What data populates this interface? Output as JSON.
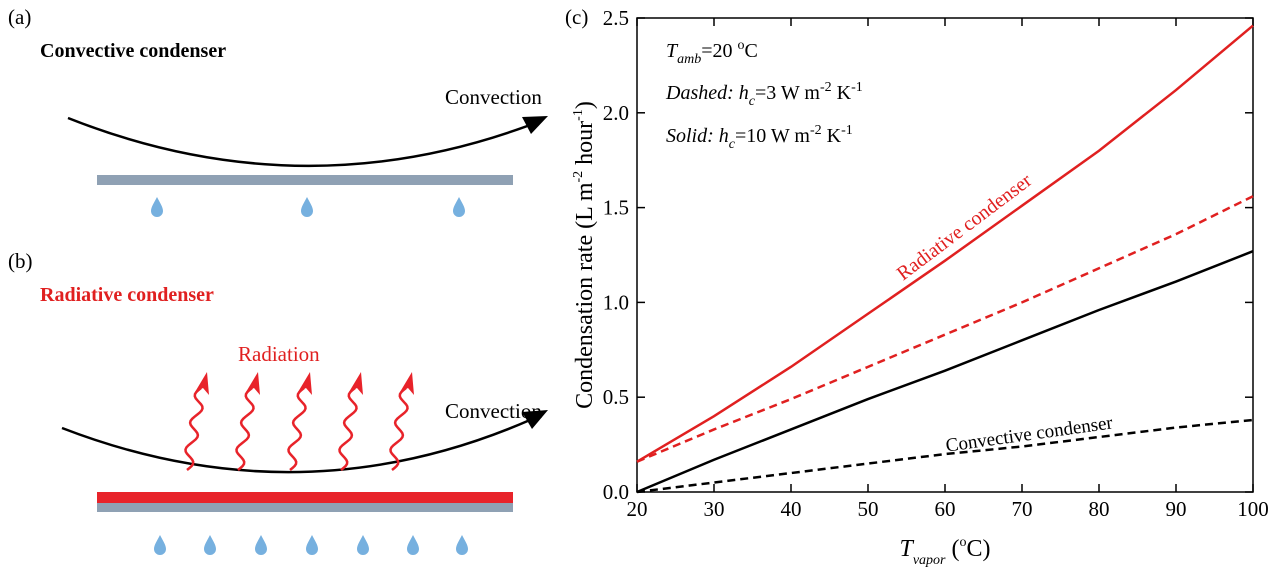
{
  "panels": {
    "a": {
      "label": "(a)",
      "title": "Convective condenser",
      "flow": "Convection"
    },
    "b": {
      "label": "(b)",
      "title": "Radiative condenser",
      "emission": "Radiation",
      "flow": "Convection"
    },
    "c": {
      "label": "(c)"
    }
  },
  "chart_data": {
    "type": "line",
    "ylabel": [
      "Condensation rate (L m",
      "-2",
      " hour",
      "-1",
      ")"
    ],
    "xlabel": [
      "T",
      "vapor",
      " (",
      "o",
      "C)"
    ],
    "notes": {
      "ambient": [
        "T",
        "amb",
        "=20 ",
        "o",
        "C"
      ],
      "dashed": [
        "Dashed:",
        " h",
        "c",
        "=3 W m",
        "-2",
        " K",
        "-1"
      ],
      "solid": [
        "Solid:",
        " h",
        "c",
        "=10 W m",
        "-2",
        " K",
        "-1"
      ]
    },
    "curve_labels": [
      "Radiative condenser",
      "Convective condenser"
    ],
    "x": [
      20,
      30,
      40,
      50,
      60,
      70,
      80,
      90,
      100
    ],
    "series": [
      {
        "color": "#e02020",
        "dashed": false,
        "values": [
          0.16,
          0.4,
          0.66,
          0.94,
          1.22,
          1.51,
          1.8,
          2.12,
          2.46
        ]
      },
      {
        "color": "#e02020",
        "dashed": true,
        "values": [
          0.16,
          0.33,
          0.49,
          0.66,
          0.83,
          1.0,
          1.18,
          1.36,
          1.56
        ]
      },
      {
        "color": "#000000",
        "dashed": false,
        "values": [
          0,
          0.17,
          0.33,
          0.49,
          0.64,
          0.8,
          0.96,
          1.11,
          1.27
        ]
      },
      {
        "color": "#000000",
        "dashed": true,
        "values": [
          0,
          0.05,
          0.1,
          0.15,
          0.2,
          0.24,
          0.29,
          0.34,
          0.38
        ]
      }
    ],
    "xlim": [
      20,
      100
    ],
    "xticks": [
      20,
      30,
      40,
      50,
      60,
      70,
      80,
      90,
      100
    ],
    "ylim": [
      0,
      2.5
    ],
    "yticks": [
      {
        "value": 0,
        "label": "0.0"
      },
      0.5,
      {
        "value": 1,
        "label": "1.0"
      },
      1.5,
      {
        "value": 2,
        "label": "2.0"
      },
      2.5
    ]
  }
}
